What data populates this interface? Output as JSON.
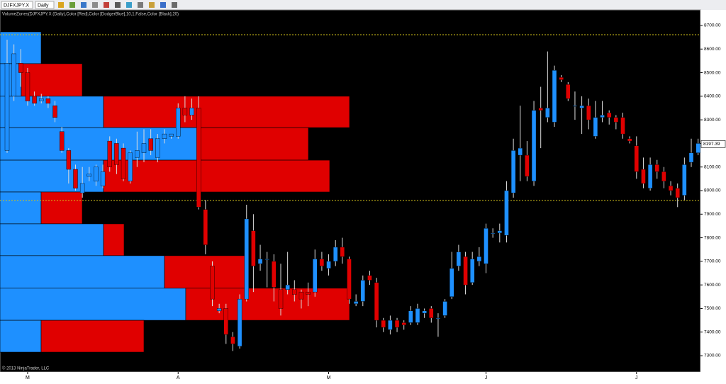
{
  "chart_data": {
    "type": "candlestick",
    "instrument": "DJFXJPY.X",
    "interval": "Daily",
    "indicator_label": "VolumeZones(DJFXJPY.X (Daily),Color [Red],Color [DodgerBlue],10,1,False,Color [Black],20)",
    "copyright": "© 2013 NinjaTrader, LLC",
    "categories": [
      null,
      null,
      null,
      "M",
      null,
      null,
      null,
      null,
      null,
      null,
      null,
      null,
      null,
      null,
      null,
      null,
      null,
      null,
      null,
      null,
      null,
      null,
      null,
      null,
      null,
      "A",
      null,
      null,
      null,
      null,
      null,
      null,
      null,
      null,
      null,
      null,
      null,
      null,
      null,
      null,
      null,
      null,
      null,
      null,
      null,
      null,
      null,
      "M",
      null,
      null,
      null,
      null,
      null,
      null,
      null,
      null,
      null,
      null,
      null,
      null,
      null,
      null,
      null,
      null,
      null,
      null,
      null,
      null,
      null,
      null,
      "J",
      null,
      null,
      null,
      null,
      null,
      null,
      null,
      null,
      null,
      null,
      null,
      null,
      null,
      null,
      null,
      null,
      null,
      null,
      null,
      null,
      null,
      "J",
      null,
      null,
      null,
      null,
      null,
      null,
      null,
      null,
      null
    ],
    "open": [
      8170,
      8400,
      8540,
      8500,
      8400,
      8380,
      8390,
      8360,
      8250,
      8170,
      8090,
      7990,
      8060,
      8040,
      8020,
      8210,
      8200,
      8180,
      8040,
      8140,
      8160,
      8220,
      8140,
      8220,
      8230,
      8230,
      8350,
      8320,
      8350,
      7920,
      7680,
      7490,
      7500,
      7380,
      7340,
      7540,
      7830,
      7690,
      7710,
      7700,
      7580,
      7580,
      7580,
      7570,
      7570,
      7570,
      7710,
      7670,
      7700,
      7760,
      7710,
      7520,
      7530,
      7640,
      7610,
      7450,
      7410,
      7450,
      7440,
      7440,
      7440,
      7480,
      7500,
      7460,
      7470,
      7550,
      7680,
      7720,
      7610,
      7700,
      7690,
      7820,
      7820,
      7810,
      7990,
      8150,
      8150,
      8040,
      8350,
      8310,
      8290,
      8480,
      8450,
      8360,
      8350,
      8360,
      8230,
      8310,
      8330,
      8310,
      8310,
      8220,
      8190,
      8090,
      8010,
      8110,
      8080,
      8020,
      8010,
      7980,
      8120,
      8160
    ],
    "high": [
      8640,
      8620,
      8600,
      8520,
      8420,
      8410,
      8400,
      8380,
      8270,
      8180,
      8110,
      8100,
      8100,
      8110,
      8110,
      8230,
      8220,
      8200,
      8170,
      8250,
      8260,
      8260,
      8240,
      8260,
      8240,
      8370,
      8400,
      8390,
      8400,
      7960,
      7700,
      7520,
      7520,
      7400,
      7560,
      7940,
      7900,
      7770,
      7740,
      7730,
      7690,
      7740,
      7620,
      7580,
      7610,
      7750,
      7740,
      7730,
      7790,
      7800,
      7720,
      7560,
      7640,
      7660,
      7630,
      7460,
      7470,
      7460,
      7450,
      7510,
      7520,
      7500,
      7510,
      7480,
      7540,
      7740,
      7770,
      7740,
      7740,
      7760,
      7860,
      7840,
      7860,
      8040,
      8220,
      8360,
      8210,
      8380,
      8440,
      8590,
      8530,
      8490,
      8460,
      8420,
      8400,
      8390,
      8380,
      8380,
      8340,
      8320,
      8330,
      8230,
      8230,
      8140,
      8140,
      8130,
      8100,
      8040,
      8030,
      8140,
      8220,
      8220
    ],
    "low": [
      8160,
      8380,
      8440,
      8360,
      8360,
      8370,
      8350,
      8290,
      8160,
      8030,
      8000,
      7970,
      8040,
      8020,
      8010,
      8080,
      8070,
      8040,
      8030,
      8100,
      8120,
      8150,
      8120,
      8200,
      8220,
      8220,
      8290,
      8300,
      7920,
      7730,
      7510,
      7480,
      7350,
      7320,
      7330,
      7530,
      7570,
      7660,
      7590,
      7530,
      7470,
      7560,
      7530,
      7500,
      7510,
      7550,
      7660,
      7640,
      7680,
      7690,
      7520,
      7510,
      7510,
      7600,
      7420,
      7400,
      7390,
      7400,
      7410,
      7430,
      7430,
      7460,
      7440,
      7380,
      7460,
      7540,
      7660,
      7560,
      7600,
      7680,
      7650,
      7800,
      7780,
      7780,
      7970,
      8040,
      8040,
      8020,
      8180,
      8290,
      8270,
      8460,
      8380,
      8300,
      8240,
      8260,
      8220,
      8290,
      8280,
      8260,
      8220,
      8200,
      8050,
      8010,
      8000,
      8050,
      8010,
      7980,
      7930,
      7960,
      8100,
      8150
    ],
    "close": [
      8540,
      8580,
      8500,
      8380,
      8370,
      8390,
      8370,
      8310,
      8170,
      8090,
      8010,
      8030,
      8070,
      8100,
      8080,
      8100,
      8110,
      8050,
      8160,
      8170,
      8200,
      8170,
      8220,
      8240,
      8240,
      8350,
      8320,
      8350,
      7930,
      7770,
      7540,
      7500,
      7390,
      7350,
      7540,
      7880,
      7680,
      7710,
      7710,
      7590,
      7500,
      7600,
      7560,
      7540,
      7560,
      7710,
      7680,
      7700,
      7760,
      7720,
      7540,
      7530,
      7620,
      7620,
      7450,
      7420,
      7450,
      7420,
      7430,
      7490,
      7500,
      7490,
      7460,
      7460,
      7530,
      7670,
      7740,
      7600,
      7710,
      7720,
      7840,
      7820,
      7830,
      8000,
      8170,
      8180,
      8060,
      8340,
      8340,
      8350,
      8510,
      8470,
      8390,
      8360,
      8360,
      8300,
      8310,
      8320,
      8310,
      8290,
      8240,
      8210,
      8080,
      8030,
      8110,
      8080,
      8040,
      8000,
      7970,
      8110,
      8160,
      8200
    ],
    "up_color": "#1e90ff",
    "down_color": "#e00000",
    "zones": {
      "bounds": [
        8673,
        8538,
        8400,
        8267,
        8129,
        7994,
        7859,
        7724,
        7586,
        7450,
        7315
      ],
      "up": [
        58,
        30,
        146,
        283,
        146,
        58,
        146,
        232,
        262,
        58
      ],
      "down": [
        0,
        86,
        347,
        152,
        319,
        58,
        29,
        116,
        231,
        145
      ]
    },
    "levels": [
      8661,
      7958
    ],
    "level_color": "#d4c21a",
    "last_price": 8197.39,
    "ylim": [
      7231,
      8766
    ],
    "yticks": [
      {
        "value": 7300,
        "label": "7300.00"
      },
      {
        "value": 7400,
        "label": "7400.00"
      },
      {
        "value": 7500,
        "label": "7500.00"
      },
      {
        "value": 7600,
        "label": "7600.00"
      },
      {
        "value": 7700,
        "label": "7700.00"
      },
      {
        "value": 7800,
        "label": "7800.00"
      },
      {
        "value": 7900,
        "label": "7900.00"
      },
      {
        "value": 8000,
        "label": "8000.00"
      },
      {
        "value": 8100,
        "label": "8100.00"
      },
      {
        "value": 8200,
        "label": "8200.00"
      },
      {
        "value": 8300,
        "label": "8300.00"
      },
      {
        "value": 8400,
        "label": "8400.00"
      },
      {
        "value": 8500,
        "label": "8500.00"
      },
      {
        "value": 8600,
        "label": "8600.00"
      },
      {
        "value": 8700,
        "label": "8700.00"
      }
    ]
  }
}
